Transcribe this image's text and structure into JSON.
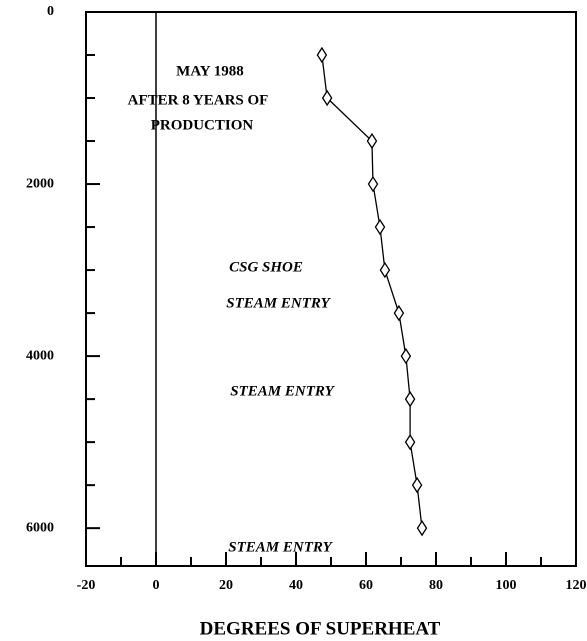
{
  "chart_data": {
    "type": "line",
    "xlabel": "DEGREES OF SUPERHEAT",
    "annotations": [
      "MAY 1988",
      "AFTER 8 YEARS OF",
      "PRODUCTION",
      "CSG SHOE",
      "STEAM ENTRY",
      "STEAM ENTRY",
      "STEAM ENTRY"
    ],
    "series": [
      {
        "color": "#000000",
        "x": [
          47.4,
          48.9,
          61.7,
          62,
          64,
          65.4,
          69.4,
          71.4,
          72.6,
          72.6,
          74.6,
          76
        ],
        "values": [
          500,
          1000,
          1500,
          2000,
          2500,
          3000,
          3500,
          4000,
          4500,
          5000,
          5500,
          6000
        ]
      }
    ],
    "xlim": [
      -20,
      120
    ],
    "xticks": [
      -20,
      0,
      20,
      40,
      60,
      80,
      100,
      120
    ],
    "ylim": [
      0,
      6440
    ],
    "yticks": [
      0,
      2000,
      4000,
      6000
    ],
    "y_inverted": true,
    "reference_x": 0
  }
}
